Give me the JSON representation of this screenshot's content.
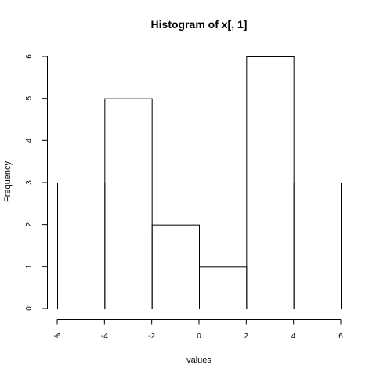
{
  "chart_data": {
    "type": "bar",
    "title": "Histogram of x[, 1]",
    "xlabel": "values",
    "ylabel": "Frequency",
    "bins": [
      {
        "from": -6,
        "to": -4,
        "count": 3
      },
      {
        "from": -4,
        "to": -2,
        "count": 5
      },
      {
        "from": -2,
        "to": 0,
        "count": 2
      },
      {
        "from": 0,
        "to": 2,
        "count": 1
      },
      {
        "from": 2,
        "to": 4,
        "count": 6
      },
      {
        "from": 4,
        "to": 6,
        "count": 3
      }
    ],
    "xlim": [
      -6,
      6
    ],
    "ylim": [
      0,
      6
    ],
    "xticks": [
      -6,
      -4,
      -2,
      0,
      2,
      4,
      6
    ],
    "yticks": [
      0,
      1,
      2,
      3,
      4,
      5,
      6
    ],
    "grid": false
  }
}
